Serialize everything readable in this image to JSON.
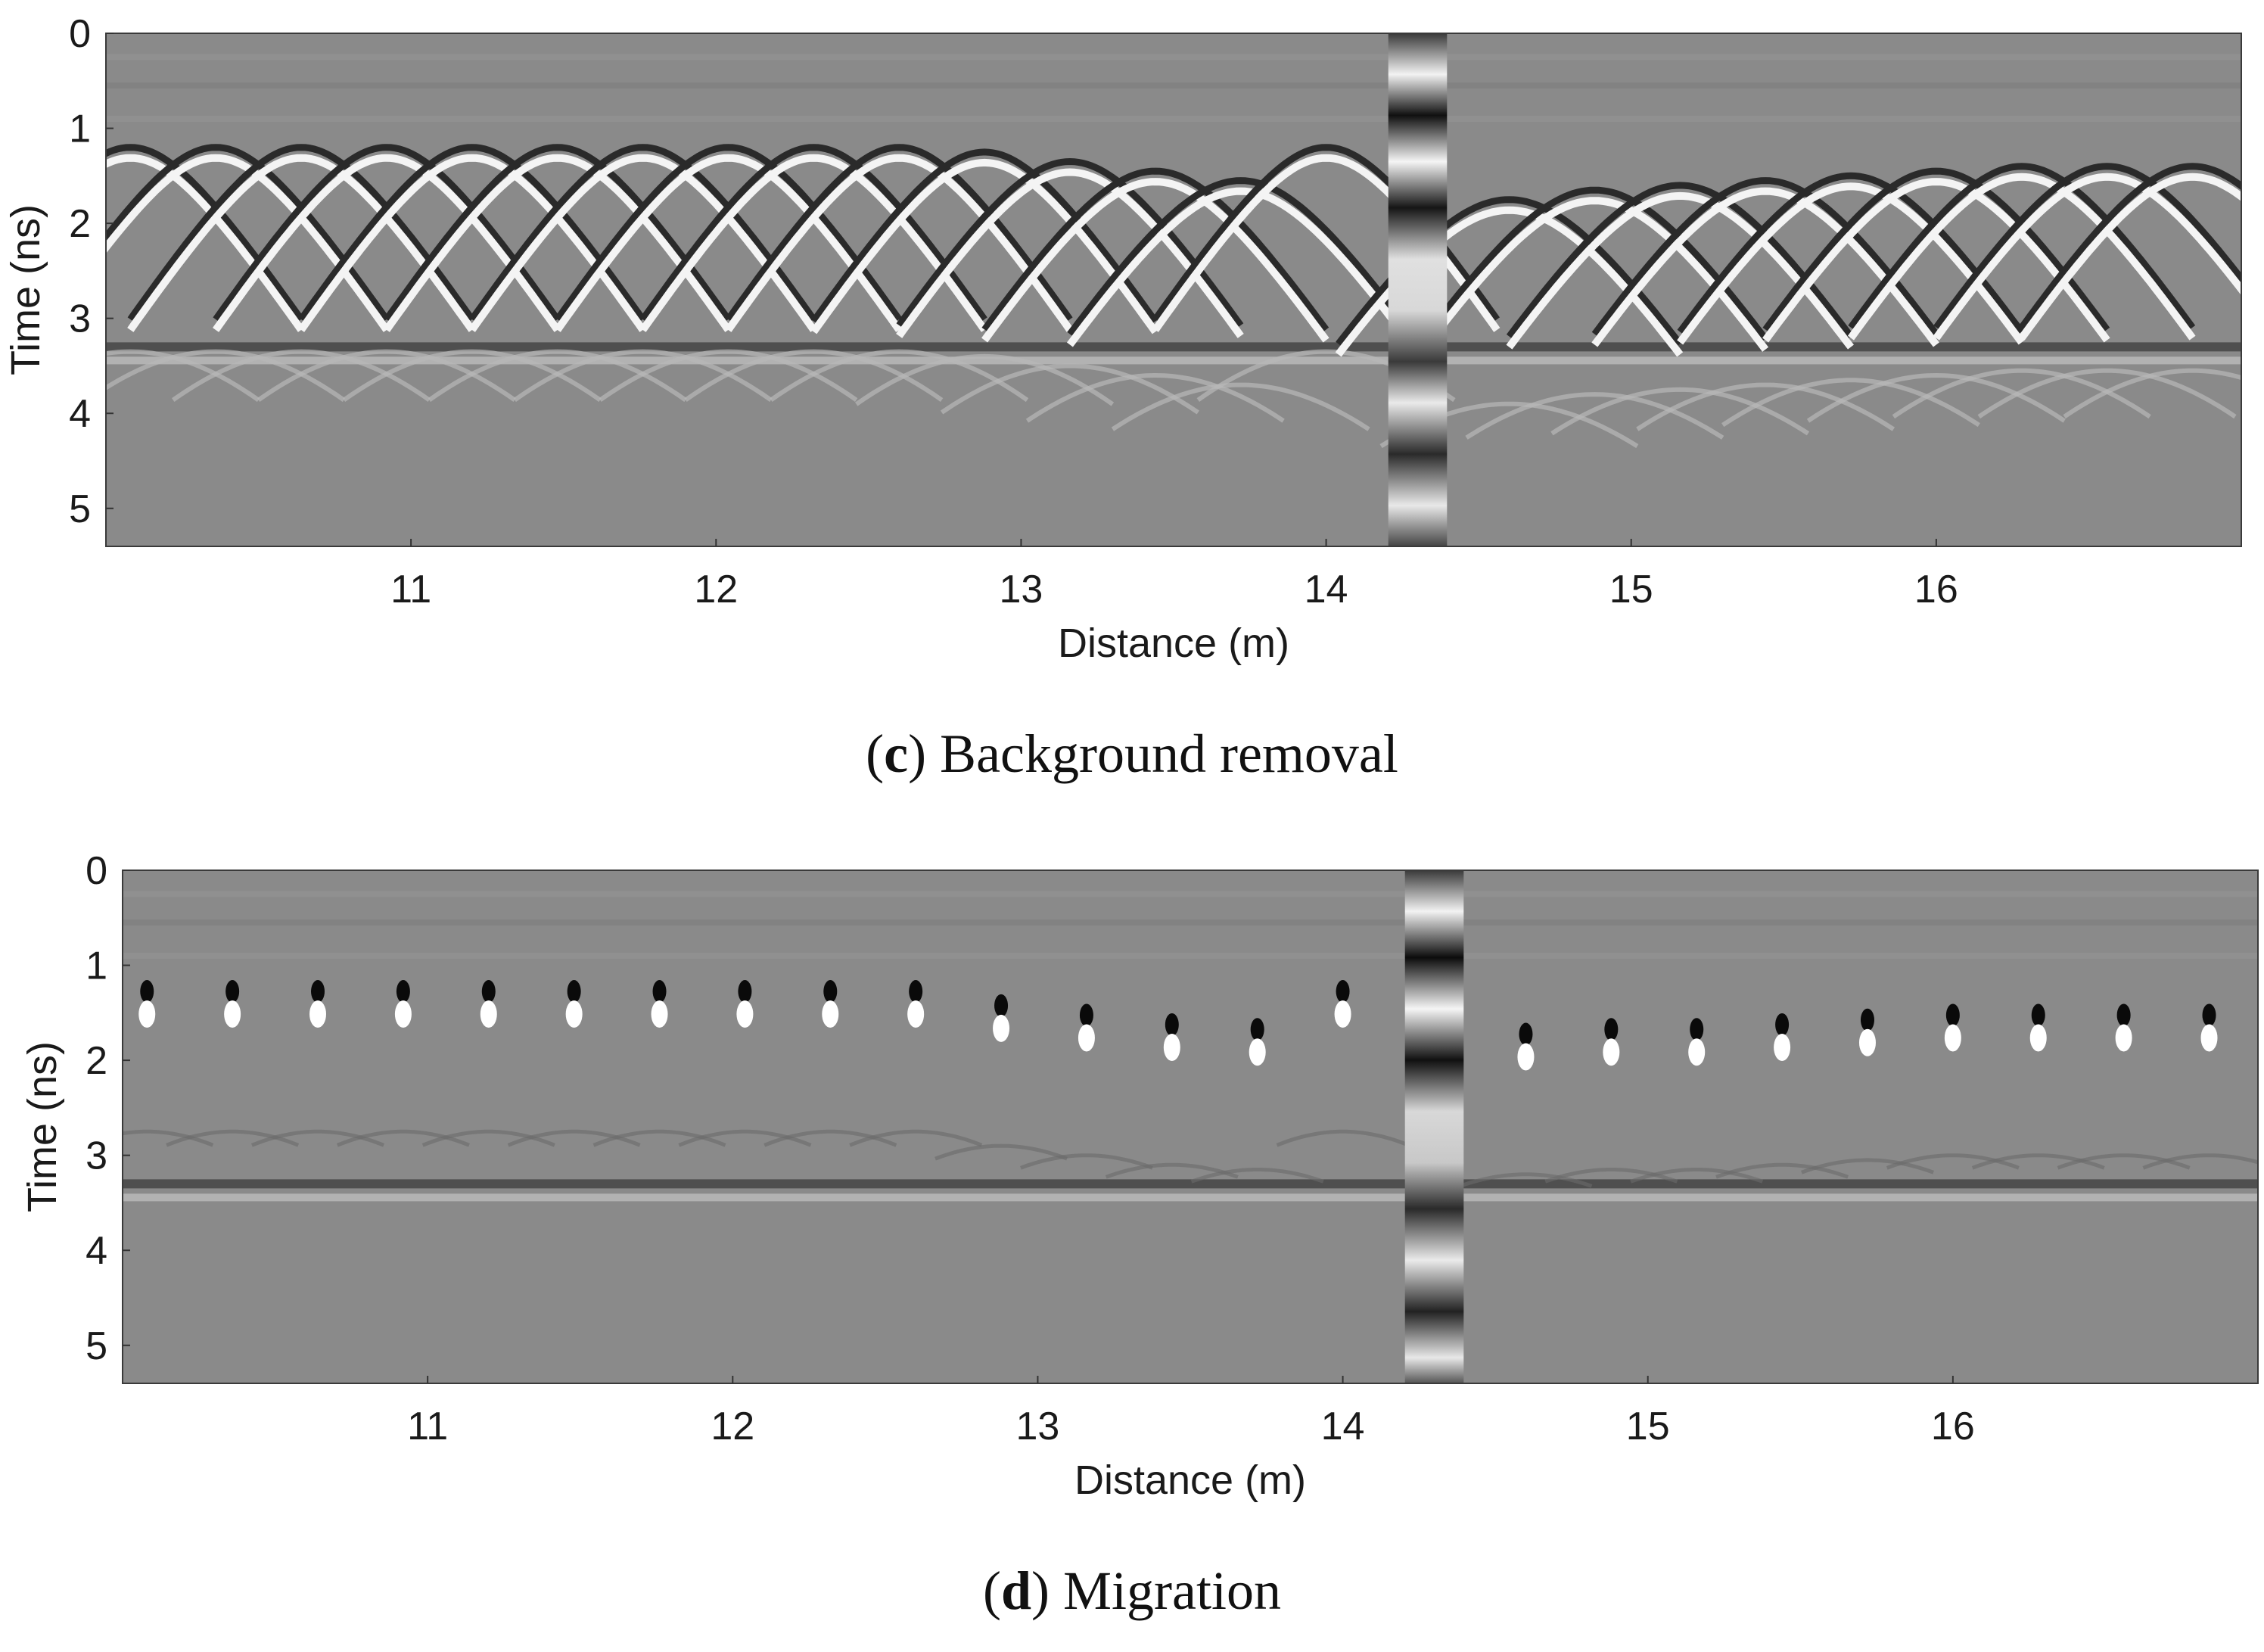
{
  "chart_data": [
    {
      "type": "heatmap",
      "panel": "c",
      "caption_letter": "c",
      "caption_text": "Background removal",
      "xlabel": "Distance (m)",
      "ylabel": "Time (ns)",
      "xlim": [
        10.0,
        17.0
      ],
      "ylim": [
        0,
        5.4
      ],
      "x_ticks": [
        11,
        12,
        13,
        14,
        15,
        16
      ],
      "y_ticks": [
        0,
        1,
        2,
        3,
        4,
        5
      ],
      "colormap": "gray",
      "hyperbola_apex_x": [
        10.08,
        10.36,
        10.64,
        10.92,
        11.2,
        11.48,
        11.76,
        12.04,
        12.32,
        12.6,
        12.88,
        13.16,
        13.44,
        13.72,
        14.0,
        14.6,
        14.88,
        15.16,
        15.44,
        15.72,
        16.0,
        16.28,
        16.56,
        16.84
      ],
      "hyperbola_apex_t": [
        1.2,
        1.2,
        1.2,
        1.2,
        1.2,
        1.2,
        1.2,
        1.2,
        1.2,
        1.2,
        1.25,
        1.35,
        1.45,
        1.55,
        1.2,
        1.75,
        1.65,
        1.6,
        1.55,
        1.5,
        1.45,
        1.4,
        1.4,
        1.4
      ],
      "interface_t": 3.3,
      "vertical_anomaly_x": 14.3
    },
    {
      "type": "heatmap",
      "panel": "d",
      "caption_letter": "d",
      "caption_text": "Migration",
      "xlabel": "Distance (m)",
      "ylabel": "Time (ns)",
      "xlim": [
        10.0,
        17.0
      ],
      "ylim": [
        0,
        5.4
      ],
      "x_ticks": [
        11,
        12,
        13,
        14,
        15,
        16
      ],
      "y_ticks": [
        0,
        1,
        2,
        3,
        4,
        5
      ],
      "colormap": "gray",
      "point_x": [
        10.08,
        10.36,
        10.64,
        10.92,
        11.2,
        11.48,
        11.76,
        12.04,
        12.32,
        12.6,
        12.88,
        13.16,
        13.44,
        13.72,
        14.0,
        14.6,
        14.88,
        15.16,
        15.44,
        15.72,
        16.0,
        16.28,
        16.56,
        16.84
      ],
      "point_t": [
        1.45,
        1.45,
        1.45,
        1.45,
        1.45,
        1.45,
        1.45,
        1.45,
        1.45,
        1.45,
        1.6,
        1.7,
        1.8,
        1.85,
        1.45,
        1.9,
        1.85,
        1.85,
        1.8,
        1.75,
        1.7,
        1.7,
        1.7,
        1.7
      ],
      "interface_t": 3.3,
      "vertical_anomaly_x": 14.3
    }
  ]
}
